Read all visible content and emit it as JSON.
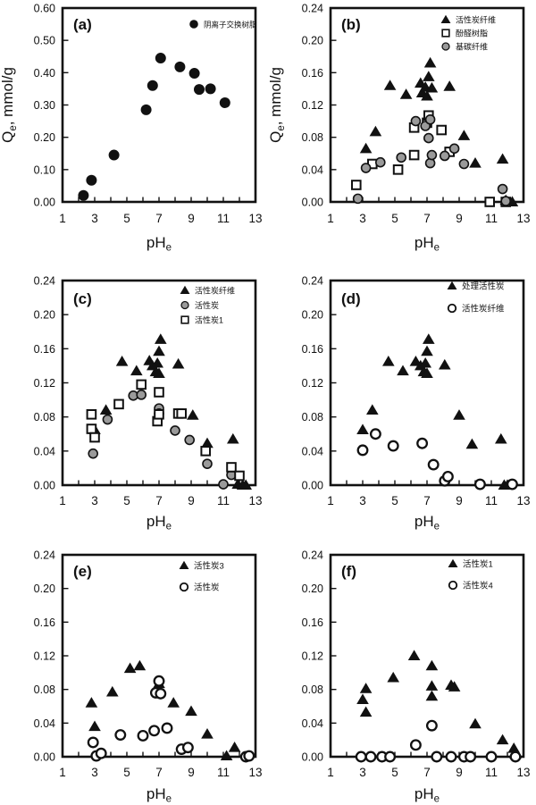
{
  "colors": {
    "ink": "#111111",
    "gray_fill": "#9a9a9a",
    "open_fill": "#ffffff",
    "background": "#ffffff"
  },
  "chart_data": [
    {
      "id": "a",
      "type": "scatter",
      "panel_label": "(a)",
      "xlabel": "pH",
      "xlabel_sub": "e",
      "ylabel": "Q",
      "ylabel_sub": "e",
      "ylabel_rest": ", mmol/g",
      "xlim": [
        1,
        13
      ],
      "xticks": [
        1,
        3,
        5,
        7,
        9,
        11,
        13
      ],
      "x_minor_step": 1,
      "ylim": [
        0,
        0.6
      ],
      "yticks": [
        "0.00",
        "0.10",
        "0.20",
        "0.30",
        "0.40",
        "0.50",
        "0.60"
      ],
      "grid": false,
      "legend_position": "top-right",
      "legend_pos": {
        "x": 217,
        "y": 27,
        "dy": 14,
        "font": 8.5
      },
      "series": [
        {
          "name": "阴离子交换树脂",
          "marker": "circle-filled",
          "points": [
            [
              2.3,
              0.02
            ],
            [
              2.8,
              0.067
            ],
            [
              4.2,
              0.145
            ],
            [
              6.2,
              0.285
            ],
            [
              6.6,
              0.36
            ],
            [
              7.1,
              0.445
            ],
            [
              8.3,
              0.418
            ],
            [
              9.2,
              0.398
            ],
            [
              9.5,
              0.348
            ],
            [
              10.2,
              0.35
            ],
            [
              11.1,
              0.307
            ]
          ]
        }
      ]
    },
    {
      "id": "b",
      "type": "scatter",
      "panel_label": "(b)",
      "xlabel": "pH",
      "xlabel_sub": "e",
      "ylabel": "Q",
      "ylabel_sub": "e",
      "ylabel_rest": ", mmol/g",
      "xlim": [
        1,
        13
      ],
      "xticks": [
        1,
        3,
        5,
        7,
        9,
        11,
        13
      ],
      "x_minor_step": 1,
      "ylim": [
        0,
        0.24
      ],
      "yticks": [
        "0.00",
        "0.04",
        "0.08",
        "0.12",
        "0.16",
        "0.20",
        "0.24"
      ],
      "grid": false,
      "legend_position": "top-right",
      "legend_pos": {
        "x": 199,
        "y": 22,
        "dy": 15,
        "font": 9
      },
      "series": [
        {
          "name": "活性炭纤维",
          "marker": "triangle-filled",
          "points": [
            [
              3.2,
              0.066
            ],
            [
              3.8,
              0.087
            ],
            [
              4.7,
              0.144
            ],
            [
              5.7,
              0.133
            ],
            [
              6.6,
              0.147
            ],
            [
              6.7,
              0.135
            ],
            [
              6.9,
              0.142
            ],
            [
              7.0,
              0.131
            ],
            [
              7.1,
              0.155
            ],
            [
              7.2,
              0.172
            ],
            [
              7.3,
              0.141
            ],
            [
              8.4,
              0.143
            ],
            [
              9.3,
              0.082
            ],
            [
              10.0,
              0.048
            ],
            [
              11.7,
              0.053
            ],
            [
              11.9,
              0.002
            ],
            [
              12.3,
              0.0
            ]
          ]
        },
        {
          "name": "酚醛树脂",
          "marker": "square-open",
          "points": [
            [
              2.6,
              0.021
            ],
            [
              3.6,
              0.047
            ],
            [
              5.2,
              0.04
            ],
            [
              6.2,
              0.058
            ],
            [
              6.2,
              0.092
            ],
            [
              7.0,
              0.098
            ],
            [
              7.1,
              0.107
            ],
            [
              7.9,
              0.089
            ],
            [
              8.4,
              0.062
            ],
            [
              10.9,
              0.0
            ],
            [
              11.9,
              0.0
            ]
          ]
        },
        {
          "name": "基碳纤维",
          "marker": "circle-gray",
          "points": [
            [
              2.7,
              0.004
            ],
            [
              3.2,
              0.042
            ],
            [
              4.1,
              0.049
            ],
            [
              5.4,
              0.055
            ],
            [
              6.3,
              0.1
            ],
            [
              6.9,
              0.094
            ],
            [
              7.2,
              0.102
            ],
            [
              7.1,
              0.079
            ],
            [
              7.2,
              0.048
            ],
            [
              7.3,
              0.058
            ],
            [
              8.1,
              0.057
            ],
            [
              8.7,
              0.066
            ],
            [
              9.3,
              0.047
            ],
            [
              11.7,
              0.016
            ],
            [
              11.9,
              0.001
            ]
          ]
        }
      ]
    },
    {
      "id": "c",
      "type": "scatter",
      "panel_label": "(c)",
      "xlabel": "pH",
      "xlabel_sub": "e",
      "ylabel": null,
      "xlim": [
        1,
        13
      ],
      "xticks": [
        1,
        3,
        5,
        7,
        9,
        11,
        13
      ],
      "x_minor_step": 1,
      "ylim": [
        0,
        0.24
      ],
      "yticks": [
        "0.00",
        "0.04",
        "0.08",
        "0.12",
        "0.16",
        "0.20",
        "0.24"
      ],
      "grid": false,
      "legend_position": "top-right",
      "legend_pos": {
        "x": 207,
        "y": 30,
        "dy": 16.5,
        "font": 9
      },
      "series": [
        {
          "name": "活性炭纤维",
          "marker": "triangle-filled",
          "points": [
            [
              3.0,
              0.065
            ],
            [
              3.7,
              0.088
            ],
            [
              4.7,
              0.145
            ],
            [
              5.6,
              0.134
            ],
            [
              6.4,
              0.146
            ],
            [
              6.6,
              0.14
            ],
            [
              6.8,
              0.133
            ],
            [
              6.9,
              0.143
            ],
            [
              7.0,
              0.131
            ],
            [
              7.0,
              0.157
            ],
            [
              7.1,
              0.171
            ],
            [
              8.2,
              0.142
            ],
            [
              9.1,
              0.082
            ],
            [
              10.0,
              0.049
            ],
            [
              11.6,
              0.054
            ],
            [
              11.9,
              0.001
            ],
            [
              12.2,
              0.0
            ],
            [
              12.4,
              0.0
            ]
          ]
        },
        {
          "name": "活性炭",
          "marker": "circle-gray",
          "points": [
            [
              2.9,
              0.037
            ],
            [
              3.8,
              0.077
            ],
            [
              5.4,
              0.105
            ],
            [
              5.9,
              0.106
            ],
            [
              7.0,
              0.09
            ],
            [
              7.0,
              0.084
            ],
            [
              8.0,
              0.064
            ],
            [
              8.9,
              0.053
            ],
            [
              10.0,
              0.025
            ],
            [
              11.0,
              0.001
            ],
            [
              11.5,
              0.012
            ]
          ]
        },
        {
          "name": "活性炭1",
          "marker": "square-open",
          "points": [
            [
              2.8,
              0.083
            ],
            [
              2.8,
              0.066
            ],
            [
              3.0,
              0.056
            ],
            [
              4.5,
              0.095
            ],
            [
              5.9,
              0.118
            ],
            [
              6.9,
              0.075
            ],
            [
              7.0,
              0.109
            ],
            [
              7.0,
              0.083
            ],
            [
              8.2,
              0.084
            ],
            [
              8.4,
              0.084
            ],
            [
              9.9,
              0.04
            ],
            [
              11.5,
              0.021
            ],
            [
              12.0,
              0.011
            ]
          ]
        }
      ]
    },
    {
      "id": "d",
      "type": "scatter",
      "panel_label": "(d)",
      "xlabel": "pH",
      "xlabel_sub": "e",
      "ylabel": null,
      "xlim": [
        1,
        13
      ],
      "xticks": [
        1,
        3,
        5,
        7,
        9,
        11,
        13
      ],
      "x_minor_step": 1,
      "ylim": [
        0,
        0.24
      ],
      "yticks": [
        "0.00",
        "0.04",
        "0.08",
        "0.12",
        "0.16",
        "0.20",
        "0.24"
      ],
      "grid": false,
      "legend_position": "top-right",
      "legend_pos": {
        "x": 206,
        "y": 25,
        "dy": 25,
        "font": 9.5
      },
      "series": [
        {
          "name": "处理活性炭",
          "marker": "triangle-filled",
          "points": [
            [
              3.0,
              0.065
            ],
            [
              3.6,
              0.088
            ],
            [
              4.6,
              0.145
            ],
            [
              5.5,
              0.134
            ],
            [
              6.3,
              0.145
            ],
            [
              6.6,
              0.14
            ],
            [
              6.8,
              0.133
            ],
            [
              6.9,
              0.143
            ],
            [
              7.0,
              0.131
            ],
            [
              7.0,
              0.157
            ],
            [
              7.1,
              0.171
            ],
            [
              8.1,
              0.141
            ],
            [
              9.0,
              0.082
            ],
            [
              9.8,
              0.048
            ],
            [
              11.6,
              0.054
            ],
            [
              11.8,
              0.0
            ],
            [
              12.0,
              0.0
            ]
          ]
        },
        {
          "name": "活性炭纤维",
          "marker": "circle-open",
          "points": [
            [
              3.0,
              0.041
            ],
            [
              3.8,
              0.06
            ],
            [
              4.9,
              0.046
            ],
            [
              6.7,
              0.049
            ],
            [
              7.4,
              0.024
            ],
            [
              8.1,
              0.005
            ],
            [
              8.3,
              0.01
            ],
            [
              10.3,
              0.001
            ],
            [
              12.3,
              0.001
            ]
          ]
        }
      ]
    },
    {
      "id": "e",
      "type": "scatter",
      "panel_label": "(e)",
      "xlabel": "pH",
      "xlabel_sub": "e",
      "ylabel": null,
      "xlim": [
        1,
        13
      ],
      "xticks": [
        1,
        3,
        5,
        7,
        9,
        11,
        13
      ],
      "x_minor_step": 1,
      "ylim": [
        0,
        0.24
      ],
      "yticks": [
        "0.00",
        "0.04",
        "0.08",
        "0.12",
        "0.16",
        "0.20",
        "0.24"
      ],
      "grid": false,
      "legend_position": "top-right",
      "legend_pos": {
        "x": 206,
        "y": 33,
        "dy": 24,
        "font": 9.5
      },
      "series": [
        {
          "name": "活性炭3",
          "marker": "triangle-filled",
          "points": [
            [
              2.8,
              0.064
            ],
            [
              3.0,
              0.036
            ],
            [
              4.1,
              0.077
            ],
            [
              5.2,
              0.105
            ],
            [
              5.8,
              0.108
            ],
            [
              7.0,
              0.087
            ],
            [
              7.9,
              0.064
            ],
            [
              9.0,
              0.054
            ],
            [
              10.0,
              0.027
            ],
            [
              11.2,
              0.001
            ],
            [
              11.7,
              0.011
            ]
          ]
        },
        {
          "name": "活性炭",
          "marker": "circle-open",
          "points": [
            [
              2.9,
              0.017
            ],
            [
              3.1,
              0.001
            ],
            [
              3.4,
              0.004
            ],
            [
              4.6,
              0.026
            ],
            [
              6.0,
              0.025
            ],
            [
              6.7,
              0.031
            ],
            [
              6.8,
              0.076
            ],
            [
              7.0,
              0.09
            ],
            [
              7.1,
              0.075
            ],
            [
              7.5,
              0.034
            ],
            [
              8.4,
              0.009
            ],
            [
              8.8,
              0.011
            ],
            [
              12.4,
              0.0
            ],
            [
              12.6,
              0.001
            ]
          ]
        }
      ]
    },
    {
      "id": "f",
      "type": "scatter",
      "panel_label": "(f)",
      "xlabel": "pH",
      "xlabel_sub": "e",
      "ylabel": null,
      "xlim": [
        1,
        13
      ],
      "xticks": [
        1,
        3,
        5,
        7,
        9,
        11,
        13
      ],
      "x_minor_step": 1,
      "ylim": [
        0,
        0.24
      ],
      "yticks": [
        "0.00",
        "0.04",
        "0.08",
        "0.12",
        "0.16",
        "0.20",
        "0.24"
      ],
      "grid": false,
      "legend_position": "top-right",
      "legend_pos": {
        "x": 207,
        "y": 31,
        "dy": 24,
        "font": 9.5
      },
      "series": [
        {
          "name": "活性炭1",
          "marker": "triangle-filled",
          "points": [
            [
              3.0,
              0.068
            ],
            [
              3.2,
              0.081
            ],
            [
              3.2,
              0.053
            ],
            [
              4.9,
              0.094
            ],
            [
              6.2,
              0.12
            ],
            [
              7.3,
              0.108
            ],
            [
              7.3,
              0.084
            ],
            [
              7.3,
              0.072
            ],
            [
              8.5,
              0.085
            ],
            [
              8.7,
              0.083
            ],
            [
              10.0,
              0.039
            ],
            [
              11.7,
              0.02
            ],
            [
              12.4,
              0.01
            ],
            [
              12.5,
              0.003
            ]
          ]
        },
        {
          "name": "活性炭4",
          "marker": "circle-open",
          "points": [
            [
              2.9,
              0.0
            ],
            [
              3.5,
              0.0
            ],
            [
              4.2,
              0.0
            ],
            [
              4.7,
              0.0
            ],
            [
              6.3,
              0.014
            ],
            [
              7.3,
              0.037
            ],
            [
              7.6,
              0.0
            ],
            [
              8.5,
              0.0
            ],
            [
              9.3,
              0.0
            ],
            [
              9.7,
              0.0
            ],
            [
              11.0,
              0.0
            ],
            [
              12.5,
              0.0
            ]
          ]
        }
      ]
    }
  ]
}
